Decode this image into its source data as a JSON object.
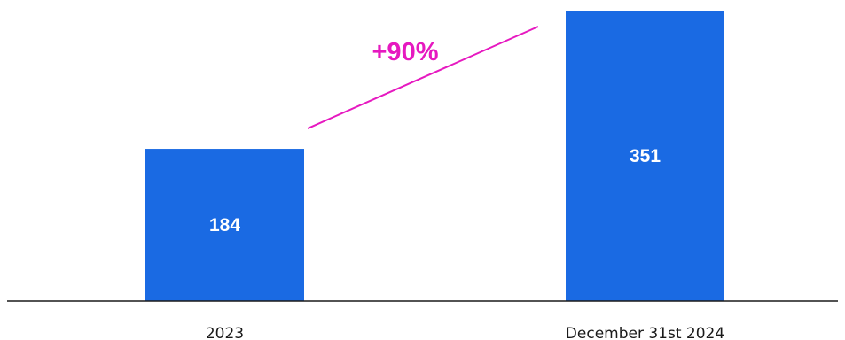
{
  "chart_data": {
    "type": "bar",
    "categories": [
      "2023",
      "December 31st 2024"
    ],
    "values": [
      184,
      351
    ],
    "data_labels": [
      "184",
      "351"
    ],
    "ylim": [
      0,
      351
    ],
    "grid": false,
    "legend": "none",
    "annotation": {
      "text": "+90%",
      "type": "growth-arrow",
      "color": "#e619c0"
    },
    "colors": {
      "bar": "#1a6ae3",
      "axis": "#1a1a1a"
    }
  }
}
